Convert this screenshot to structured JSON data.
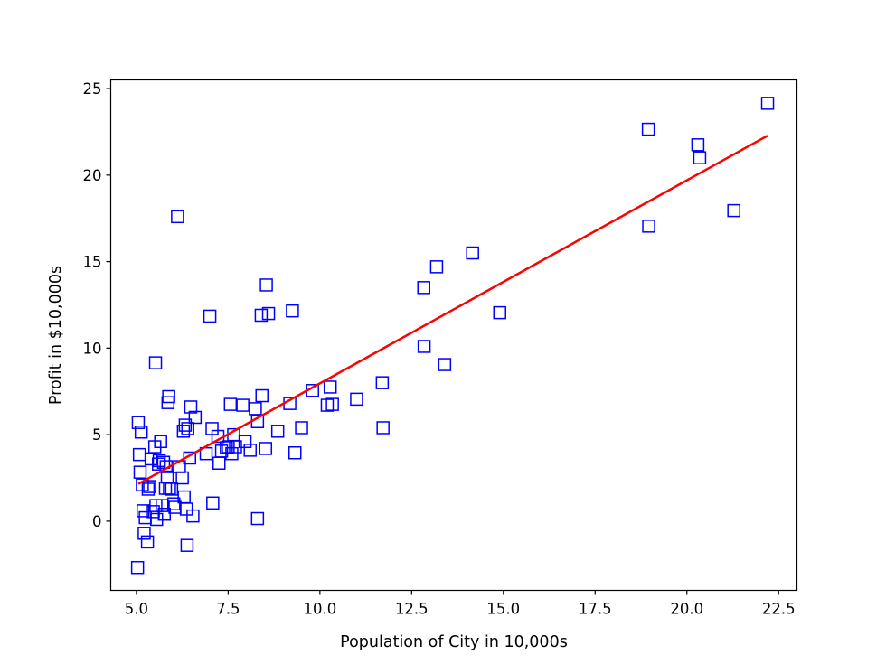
{
  "chart_data": {
    "type": "scatter",
    "title": "",
    "xlabel": "Population of City in 10,000s",
    "ylabel": "Profit in $10,000s",
    "xlim": [
      4.3,
      23.0
    ],
    "ylim": [
      -4.0,
      25.5
    ],
    "xticks": [
      5.0,
      7.5,
      10.0,
      12.5,
      15.0,
      17.5,
      20.0,
      22.5
    ],
    "xtick_labels": [
      "5.0",
      "7.5",
      "10.0",
      "12.5",
      "15.0",
      "17.5",
      "20.0",
      "22.5"
    ],
    "yticks": [
      0,
      5,
      10,
      15,
      20,
      25
    ],
    "ytick_labels": [
      "0",
      "5",
      "10",
      "15",
      "20",
      "25"
    ],
    "grid": false,
    "legend": "none",
    "marker_color": "#0000ff",
    "line_color": "#ff0000",
    "series": [
      {
        "kind": "scatter",
        "marker": "square-outline",
        "points": [
          [
            5.03,
            -2.68
          ],
          [
            5.05,
            5.7
          ],
          [
            5.08,
            3.85
          ],
          [
            5.1,
            2.83
          ],
          [
            5.13,
            5.15
          ],
          [
            5.16,
            2.1
          ],
          [
            5.18,
            0.6
          ],
          [
            5.21,
            -0.7
          ],
          [
            5.24,
            0.2
          ],
          [
            5.3,
            -1.2
          ],
          [
            5.32,
            1.85
          ],
          [
            5.36,
            2.0
          ],
          [
            5.4,
            3.6
          ],
          [
            5.46,
            0.55
          ],
          [
            5.5,
            4.3
          ],
          [
            5.52,
            9.15
          ],
          [
            5.53,
            0.9
          ],
          [
            5.55,
            0.1
          ],
          [
            5.6,
            3.3
          ],
          [
            5.62,
            3.5
          ],
          [
            5.66,
            4.6
          ],
          [
            5.7,
            0.9
          ],
          [
            5.74,
            3.4
          ],
          [
            5.76,
            0.4
          ],
          [
            5.79,
            1.9
          ],
          [
            5.81,
            3.15
          ],
          [
            5.84,
            2.55
          ],
          [
            5.86,
            6.85
          ],
          [
            5.88,
            7.2
          ],
          [
            5.9,
            1.9
          ],
          [
            5.96,
            1.85
          ],
          [
            6.02,
            1.0
          ],
          [
            6.05,
            0.8
          ],
          [
            6.12,
            17.6
          ],
          [
            6.17,
            3.15
          ],
          [
            6.25,
            2.5
          ],
          [
            6.28,
            5.2
          ],
          [
            6.3,
            1.4
          ],
          [
            6.33,
            5.55
          ],
          [
            6.36,
            0.7
          ],
          [
            6.38,
            -1.4
          ],
          [
            6.4,
            5.35
          ],
          [
            6.45,
            3.65
          ],
          [
            6.48,
            6.6
          ],
          [
            6.54,
            0.3
          ],
          [
            6.6,
            6.0
          ],
          [
            6.9,
            3.9
          ],
          [
            7.0,
            11.85
          ],
          [
            7.06,
            5.35
          ],
          [
            7.08,
            1.05
          ],
          [
            7.22,
            4.9
          ],
          [
            7.25,
            3.35
          ],
          [
            7.32,
            4.05
          ],
          [
            7.45,
            4.25
          ],
          [
            7.5,
            4.3
          ],
          [
            7.56,
            6.75
          ],
          [
            7.6,
            3.9
          ],
          [
            7.65,
            5.0
          ],
          [
            7.7,
            4.3
          ],
          [
            7.9,
            6.7
          ],
          [
            7.96,
            4.6
          ],
          [
            8.1,
            4.1
          ],
          [
            8.24,
            6.5
          ],
          [
            8.3,
            5.75
          ],
          [
            8.3,
            0.15
          ],
          [
            8.4,
            11.9
          ],
          [
            8.42,
            7.25
          ],
          [
            8.52,
            4.2
          ],
          [
            8.54,
            13.65
          ],
          [
            8.6,
            12.0
          ],
          [
            8.85,
            5.2
          ],
          [
            9.18,
            6.8
          ],
          [
            9.25,
            12.15
          ],
          [
            9.32,
            3.95
          ],
          [
            9.5,
            5.4
          ],
          [
            9.8,
            7.55
          ],
          [
            10.2,
            6.7
          ],
          [
            10.28,
            7.75
          ],
          [
            10.34,
            6.75
          ],
          [
            11.0,
            7.05
          ],
          [
            11.7,
            8.0
          ],
          [
            11.72,
            5.4
          ],
          [
            12.83,
            13.5
          ],
          [
            12.84,
            10.1
          ],
          [
            13.18,
            14.7
          ],
          [
            13.4,
            9.05
          ],
          [
            14.16,
            15.5
          ],
          [
            14.9,
            12.05
          ],
          [
            18.95,
            22.65
          ],
          [
            18.96,
            17.05
          ],
          [
            20.3,
            21.75
          ],
          [
            20.35,
            21.0
          ],
          [
            21.28,
            17.95
          ],
          [
            22.2,
            24.15
          ]
        ]
      },
      {
        "kind": "line",
        "points": [
          [
            5.05,
            2.15
          ],
          [
            22.2,
            22.28
          ]
        ]
      }
    ]
  }
}
